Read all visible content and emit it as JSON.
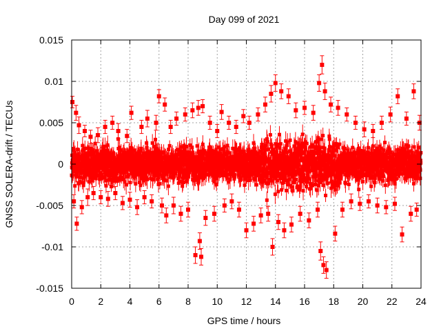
{
  "chart_data": {
    "type": "scatter",
    "title": "Day 099 of 2021",
    "xlabel": "GPS time / hours",
    "ylabel": "GNSS SOLERA-drift / TECUs",
    "xlim": [
      0,
      24
    ],
    "ylim": [
      -0.015,
      0.015
    ],
    "xticks": [
      0,
      2,
      4,
      6,
      8,
      10,
      12,
      14,
      16,
      18,
      20,
      22,
      24
    ],
    "yticks": [
      -0.015,
      -0.01,
      -0.005,
      0,
      0.005,
      0.01,
      0.015
    ],
    "ytick_labels": [
      "-0.015",
      "-0.01",
      "-0.005",
      "0",
      "0.005",
      "0.01",
      "0.015"
    ],
    "grid": true,
    "error_bars": true,
    "series_color": "#ff0000",
    "series": [
      {
        "points": [
          [
            0.05,
            0.0075,
            0.0007
          ],
          [
            0.15,
            -0.0045,
            0.0008
          ],
          [
            0.3,
            0.0062,
            0.0009
          ],
          [
            0.35,
            -0.0072,
            0.0008
          ],
          [
            0.5,
            0.0047,
            0.001
          ],
          [
            0.7,
            -0.0052,
            0.0008
          ],
          [
            0.9,
            0.004,
            0.0007
          ],
          [
            1.1,
            -0.004,
            0.001
          ],
          [
            1.3,
            0.0033,
            0.0008
          ],
          [
            1.5,
            -0.0035,
            0.0008
          ],
          [
            1.8,
            0.0035,
            0.0009
          ],
          [
            2.0,
            -0.004,
            0.0008
          ],
          [
            2.3,
            0.0045,
            0.0008
          ],
          [
            2.5,
            -0.0042,
            0.0009
          ],
          [
            2.8,
            0.005,
            0.0008
          ],
          [
            3.0,
            -0.0035,
            0.0008
          ],
          [
            3.2,
            0.004,
            0.0009
          ],
          [
            3.5,
            -0.0047,
            0.0008
          ],
          [
            3.8,
            0.0034,
            0.0008
          ],
          [
            4.0,
            -0.0043,
            0.0009
          ],
          [
            4.1,
            0.0062,
            0.0008
          ],
          [
            4.5,
            -0.0052,
            0.0009
          ],
          [
            4.8,
            0.0045,
            0.0008
          ],
          [
            5.0,
            -0.004,
            0.0008
          ],
          [
            5.2,
            0.0055,
            0.001
          ],
          [
            5.5,
            -0.0045,
            0.0008
          ],
          [
            5.8,
            0.005,
            0.0009
          ],
          [
            6.0,
            0.0082,
            0.0008
          ],
          [
            6.2,
            -0.005,
            0.0009
          ],
          [
            6.4,
            0.0072,
            0.0008
          ],
          [
            6.5,
            -0.0062,
            0.0009
          ],
          [
            6.8,
            0.0045,
            0.0008
          ],
          [
            7.0,
            -0.005,
            0.001
          ],
          [
            7.2,
            0.0055,
            0.0008
          ],
          [
            7.5,
            -0.006,
            0.0009
          ],
          [
            7.8,
            0.006,
            0.0008
          ],
          [
            8.0,
            -0.0055,
            0.0009
          ],
          [
            8.3,
            0.0065,
            0.0009
          ],
          [
            8.5,
            -0.011,
            0.001
          ],
          [
            8.7,
            0.0068,
            0.0009
          ],
          [
            8.8,
            -0.0093,
            0.001
          ],
          [
            8.9,
            -0.0112,
            0.001
          ],
          [
            9.0,
            0.007,
            0.0008
          ],
          [
            9.2,
            -0.0065,
            0.0009
          ],
          [
            9.5,
            0.005,
            0.0008
          ],
          [
            9.8,
            -0.006,
            0.0009
          ],
          [
            10.0,
            0.004,
            0.0008
          ],
          [
            10.3,
            0.0063,
            0.0009
          ],
          [
            10.5,
            -0.005,
            0.0008
          ],
          [
            10.8,
            0.005,
            0.0008
          ],
          [
            11.0,
            -0.0045,
            0.0009
          ],
          [
            11.3,
            0.0045,
            0.0008
          ],
          [
            11.5,
            -0.0055,
            0.0009
          ],
          [
            11.8,
            0.0058,
            0.0008
          ],
          [
            12.0,
            -0.008,
            0.0009
          ],
          [
            12.2,
            0.005,
            0.0008
          ],
          [
            12.5,
            -0.0072,
            0.0009
          ],
          [
            12.8,
            0.006,
            0.0008
          ],
          [
            13.0,
            -0.0062,
            0.0009
          ],
          [
            13.3,
            0.0072,
            0.0009
          ],
          [
            13.5,
            -0.006,
            0.0009
          ],
          [
            13.7,
            0.0085,
            0.001
          ],
          [
            13.8,
            -0.01,
            0.001
          ],
          [
            14.0,
            0.0098,
            0.001
          ],
          [
            14.2,
            -0.007,
            0.0009
          ],
          [
            14.4,
            0.0088,
            0.0009
          ],
          [
            14.6,
            -0.008,
            0.0009
          ],
          [
            14.9,
            0.0082,
            0.0009
          ],
          [
            15.1,
            -0.0073,
            0.0009
          ],
          [
            15.4,
            0.0065,
            0.0009
          ],
          [
            15.7,
            -0.006,
            0.0009
          ],
          [
            16.0,
            0.0068,
            0.0008
          ],
          [
            16.3,
            -0.0068,
            0.0009
          ],
          [
            16.6,
            0.0062,
            0.0009
          ],
          [
            16.9,
            -0.0055,
            0.0009
          ],
          [
            17.0,
            0.0098,
            0.001
          ],
          [
            17.1,
            -0.0105,
            0.0011
          ],
          [
            17.2,
            0.012,
            0.0011
          ],
          [
            17.3,
            -0.0122,
            0.001
          ],
          [
            17.4,
            0.0088,
            0.001
          ],
          [
            17.5,
            -0.0128,
            0.001
          ],
          [
            17.8,
            0.0072,
            0.0009
          ],
          [
            18.1,
            -0.0084,
            0.0009
          ],
          [
            18.3,
            0.0068,
            0.0009
          ],
          [
            18.6,
            -0.0055,
            0.0009
          ],
          [
            18.9,
            0.006,
            0.0008
          ],
          [
            19.2,
            -0.0045,
            0.0009
          ],
          [
            19.5,
            0.005,
            0.0008
          ],
          [
            19.8,
            -0.0048,
            0.0008
          ],
          [
            20.1,
            0.0042,
            0.0009
          ],
          [
            20.4,
            -0.0045,
            0.0008
          ],
          [
            20.7,
            0.004,
            0.0008
          ],
          [
            21.0,
            -0.005,
            0.0009
          ],
          [
            21.3,
            0.005,
            0.0008
          ],
          [
            21.6,
            -0.0052,
            0.0008
          ],
          [
            21.9,
            0.006,
            0.0009
          ],
          [
            22.2,
            -0.0048,
            0.0008
          ],
          [
            22.4,
            0.0082,
            0.0009
          ],
          [
            22.7,
            -0.0085,
            0.0009
          ],
          [
            23.0,
            0.0055,
            0.0008
          ],
          [
            23.3,
            -0.006,
            0.0009
          ],
          [
            23.5,
            0.0088,
            0.0009
          ],
          [
            23.7,
            -0.0055,
            0.0008
          ],
          [
            23.9,
            0.005,
            0.0009
          ]
        ]
      }
    ]
  }
}
